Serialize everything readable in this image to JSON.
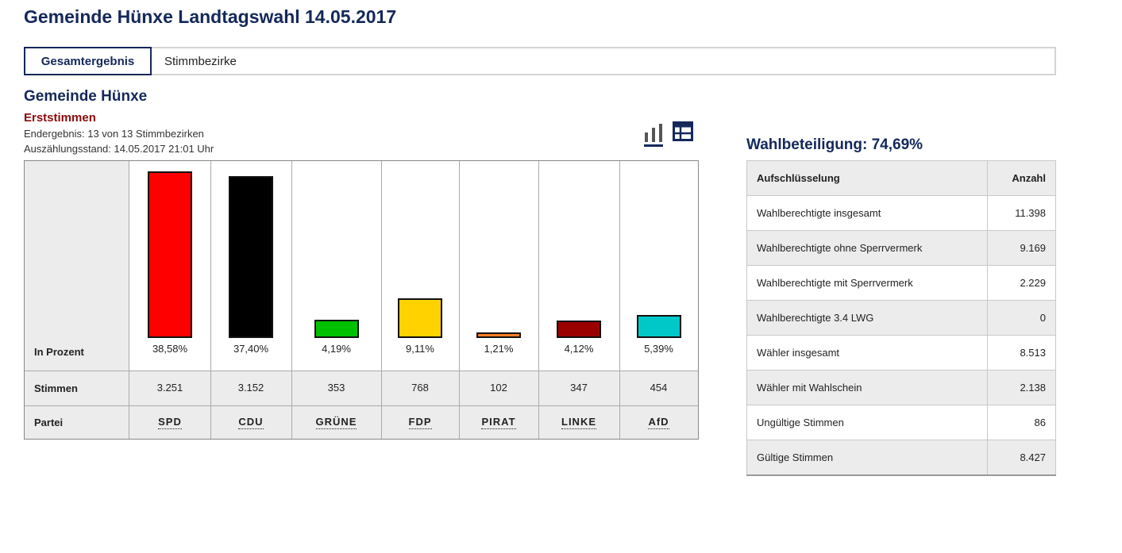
{
  "page": {
    "title": "Gemeinde Hünxe Landtagswahl 14.05.2017"
  },
  "tabs": [
    {
      "label": "Gesamtergebnis",
      "active": true
    },
    {
      "label": "Stimmbezirke",
      "active": false
    }
  ],
  "section": {
    "title": "Gemeinde Hünxe",
    "subtitle": "Erststimmen",
    "result_status": "Endergebnis: 13 von 13 Stimmbezirken",
    "count_status": "Auszählungsstand: 14.05.2017 21:01 Uhr"
  },
  "icons": {
    "chart_view": "bar-chart-icon",
    "table_view": "table-icon",
    "active": "chart_view",
    "accent": "#14285a"
  },
  "row_labels": {
    "percent": "In Prozent",
    "votes": "Stimmen",
    "party": "Partei"
  },
  "chart_data": {
    "type": "bar",
    "categories": [
      "SPD",
      "CDU",
      "GRÜNE",
      "FDP",
      "PIRAT",
      "LINKE",
      "AfD"
    ],
    "values": [
      38.58,
      37.4,
      4.19,
      9.11,
      1.21,
      4.12,
      5.39
    ],
    "value_labels": [
      "38,58%",
      "37,40%",
      "4,19%",
      "9,11%",
      "1,21%",
      "4,12%",
      "5,39%"
    ],
    "votes": [
      "3.251",
      "3.152",
      "353",
      "768",
      "102",
      "347",
      "454"
    ],
    "colors": [
      "#ff0000",
      "#000000",
      "#00c000",
      "#ffd200",
      "#ff7f27",
      "#9b0000",
      "#00c8c8"
    ],
    "ylim": [
      0,
      38.58
    ],
    "grid": false
  },
  "turnout": {
    "label": "Wahlbeteiligung: 74,69%"
  },
  "stats": {
    "headers": [
      "Aufschlüsselung",
      "Anzahl"
    ],
    "rows": [
      {
        "label": "Wahlberechtigte insgesamt",
        "value": "11.398"
      },
      {
        "label": "Wahlberechtigte ohne Sperrvermerk",
        "value": "9.169"
      },
      {
        "label": "Wahlberechtigte mit Sperrvermerk",
        "value": "2.229"
      },
      {
        "label": "Wahlberechtigte 3.4 LWG",
        "value": "0"
      },
      {
        "label": "Wähler insgesamt",
        "value": "8.513"
      },
      {
        "label": "Wähler mit Wahlschein",
        "value": "2.138"
      },
      {
        "label": "Ungültige Stimmen",
        "value": "86"
      },
      {
        "label": "Gültige Stimmen",
        "value": "8.427"
      }
    ]
  }
}
